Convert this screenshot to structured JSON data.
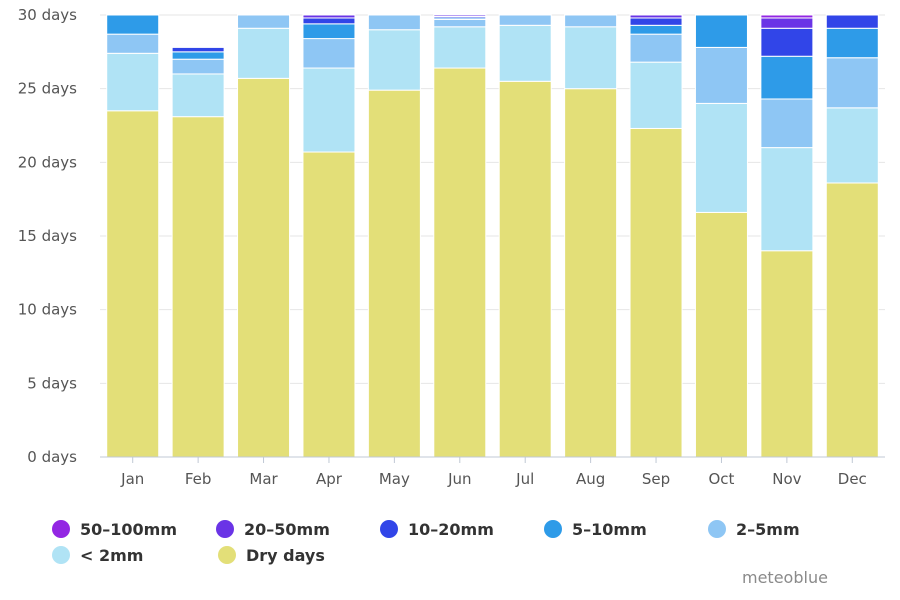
{
  "chart_data": {
    "type": "bar",
    "stacked": true,
    "categories": [
      "Jan",
      "Feb",
      "Mar",
      "Apr",
      "May",
      "Jun",
      "Jul",
      "Aug",
      "Sep",
      "Oct",
      "Nov",
      "Dec"
    ],
    "y_ticks": [
      "0 days",
      "5 days",
      "10 days",
      "15 days",
      "20 days",
      "25 days",
      "30 days"
    ],
    "ylim": [
      0,
      30
    ],
    "series": [
      {
        "name": "Dry days",
        "color": "#e3df78",
        "values": [
          23.5,
          23.1,
          25.7,
          20.7,
          24.9,
          26.4,
          25.5,
          25.0,
          22.3,
          16.6,
          14.0,
          18.6
        ]
      },
      {
        "name": "< 2mm",
        "color": "#b0e3f5",
        "values": [
          3.9,
          2.9,
          3.4,
          5.7,
          4.1,
          2.8,
          3.8,
          4.2,
          4.5,
          7.4,
          7.0,
          5.1
        ]
      },
      {
        "name": "2-5mm",
        "color": "#8ec6f4",
        "values": [
          1.3,
          1.0,
          0.9,
          2.0,
          1.0,
          0.5,
          0.7,
          0.8,
          1.9,
          3.8,
          3.3,
          3.4
        ]
      },
      {
        "name": "5-10mm",
        "color": "#2e9be8",
        "values": [
          1.3,
          0.5,
          0.0,
          1.0,
          0.0,
          0.1,
          0.0,
          0.0,
          0.6,
          2.2,
          2.9,
          2.0
        ]
      },
      {
        "name": "10-20mm",
        "color": "#3145e8",
        "values": [
          0.0,
          0.3,
          0.0,
          0.4,
          0.0,
          0.1,
          0.0,
          0.0,
          0.5,
          0.0,
          1.9,
          0.9
        ]
      },
      {
        "name": "20-50mm",
        "color": "#6a34e6",
        "values": [
          0.0,
          0.0,
          0.0,
          0.2,
          0.0,
          0.1,
          0.0,
          0.0,
          0.2,
          0.0,
          0.7,
          0.0
        ]
      },
      {
        "name": "50-100mm",
        "color": "#9326e3",
        "values": [
          0.0,
          0.0,
          0.0,
          0.0,
          0.0,
          0.0,
          0.0,
          0.0,
          0.0,
          0.0,
          0.2,
          0.0
        ]
      }
    ],
    "legend": {
      "rows": [
        [
          "50-100mm",
          "20-50mm",
          "10-20mm",
          "5-10mm",
          "2-5mm"
        ],
        [
          "< 2mm",
          "Dry days"
        ]
      ],
      "labels": [
        "50–100mm",
        "20–50mm",
        "10–20mm",
        "5–10mm",
        "2–5mm",
        "< 2mm",
        "Dry days"
      ],
      "placement": "bottom"
    },
    "grid": true,
    "colors": {
      "grid": "#e6e6e6",
      "axis": "#c0c8d4",
      "bar_separator": "#ffffff"
    }
  },
  "credit": "meteoblue"
}
